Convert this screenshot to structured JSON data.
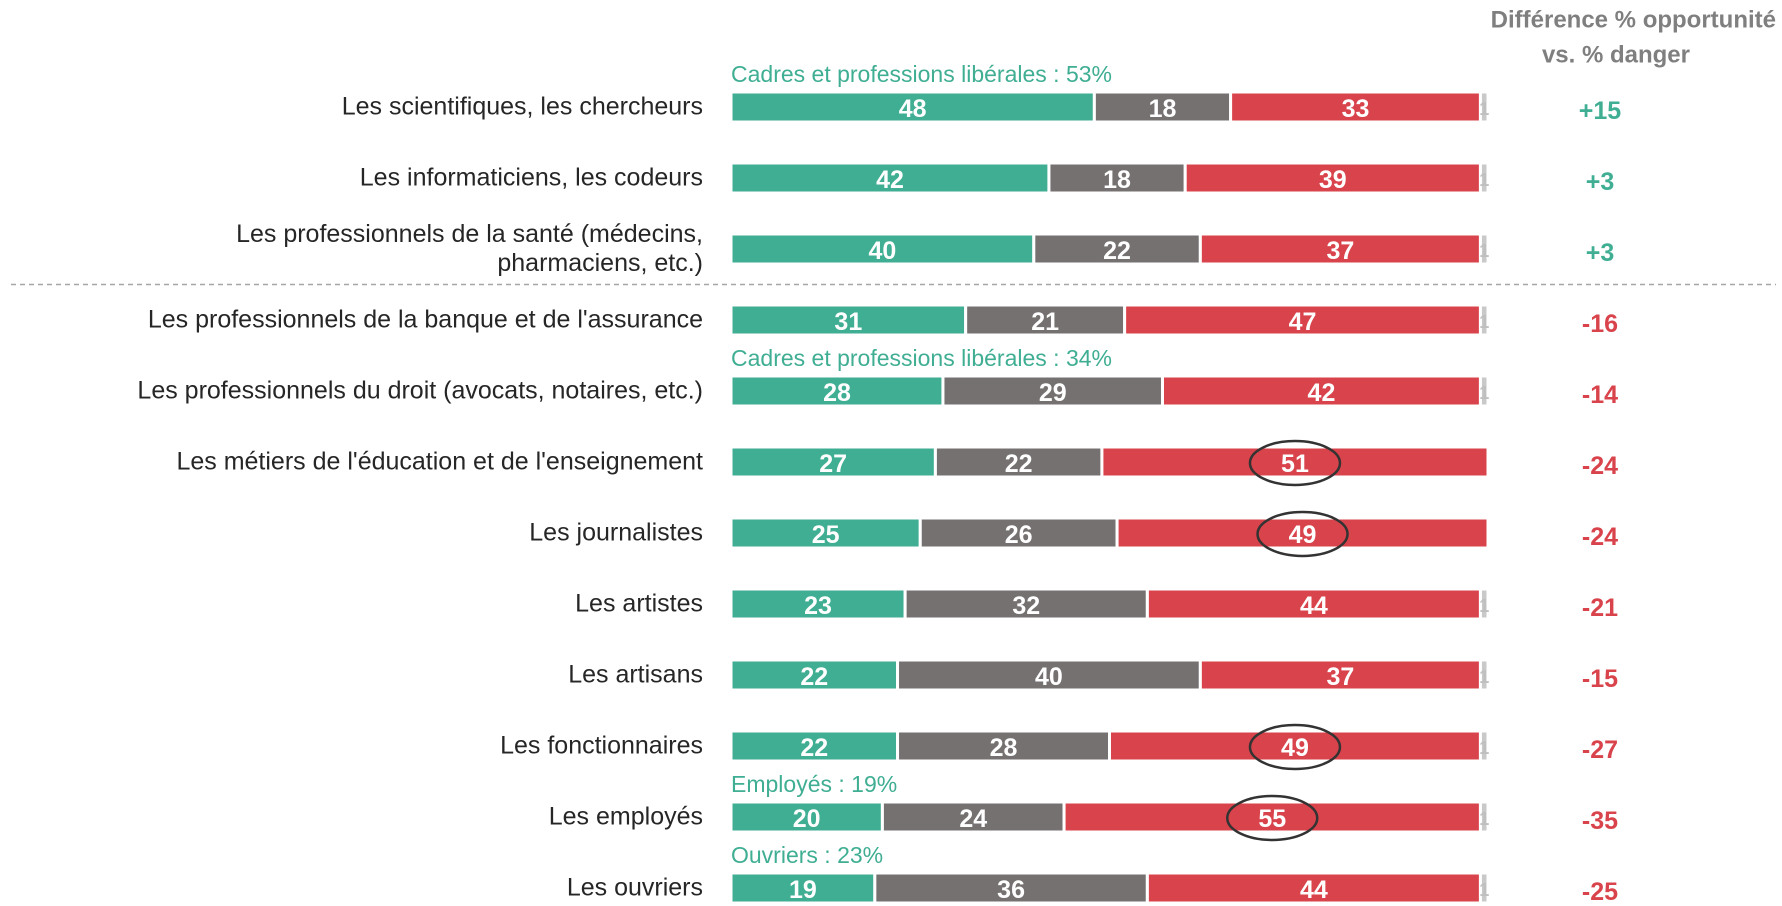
{
  "chart_data": {
    "type": "stacked-bar",
    "categories": [
      "Les scientifiques, les chercheurs",
      "Les informaticiens, les codeurs",
      "Les professionnels de la santé (médecins,\npharmaciens, etc.)",
      "Les professionnels de la banque et de l'assurance",
      "Les professionnels du droit (avocats, notaires, etc.)",
      "Les métiers de l'éducation et de l'enseignement",
      "Les journalistes",
      "Les artistes",
      "Les artisans",
      "Les fonctionnaires",
      "Les employés",
      "Les ouvriers"
    ],
    "series": [
      {
        "color": "#3fae93",
        "label_color": "#ffffff",
        "values": [
          48,
          42,
          40,
          31,
          28,
          27,
          25,
          23,
          22,
          22,
          20,
          19
        ]
      },
      {
        "color": "#767171",
        "label_color": "#ffffff",
        "values": [
          18,
          18,
          22,
          21,
          29,
          22,
          26,
          32,
          40,
          28,
          24,
          36
        ]
      },
      {
        "color": "#d9434b",
        "label_color": "#ffffff",
        "values": [
          33,
          39,
          37,
          47,
          42,
          51,
          49,
          44,
          37,
          49,
          55,
          44
        ]
      },
      {
        "color": "#c9c9c9",
        "label_color": "#bfbfbf",
        "values": [
          1,
          1,
          1,
          1,
          1,
          null,
          null,
          1,
          1,
          1,
          1,
          1
        ]
      }
    ],
    "difference": {
      "title": [
        "Différence  % opportunité",
        "vs. % danger"
      ],
      "values": [
        15,
        3,
        3,
        -16,
        -14,
        -24,
        -24,
        -21,
        -15,
        -27,
        -35,
        -25
      ],
      "value_labels": [
        "+15",
        "+3",
        "+3",
        "-16",
        "-14",
        "-24",
        "-24",
        "-21",
        "-15",
        "-27",
        "-35",
        "-25"
      ],
      "positive_color": "#3fae93",
      "negative_color": "#d9434b"
    },
    "annotations": [
      {
        "text": "Cadres et professions libérales : 53%",
        "category": "Les scientifiques, les chercheurs"
      },
      {
        "text": "Cadres et professions libérales : 34%",
        "category": "Les professionnels du droit (avocats, notaires, etc.)"
      },
      {
        "text": "Employés : 19%",
        "category": "Les employés"
      },
      {
        "text": "Ouvriers : 23%",
        "category": "Les ouvriers"
      }
    ],
    "annotation_color": "#3fae93",
    "highlighted": [
      {
        "category": "Les métiers de l'éducation et de l'enseignement",
        "series": 2
      },
      {
        "category": "Les journalistes",
        "series": 2
      },
      {
        "category": "Les fonctionnaires",
        "series": 2
      },
      {
        "category": "Les employés",
        "series": 2
      }
    ],
    "separator_after": "Les professionnels de la santé (médecins,\npharmaciens, etc.)"
  }
}
